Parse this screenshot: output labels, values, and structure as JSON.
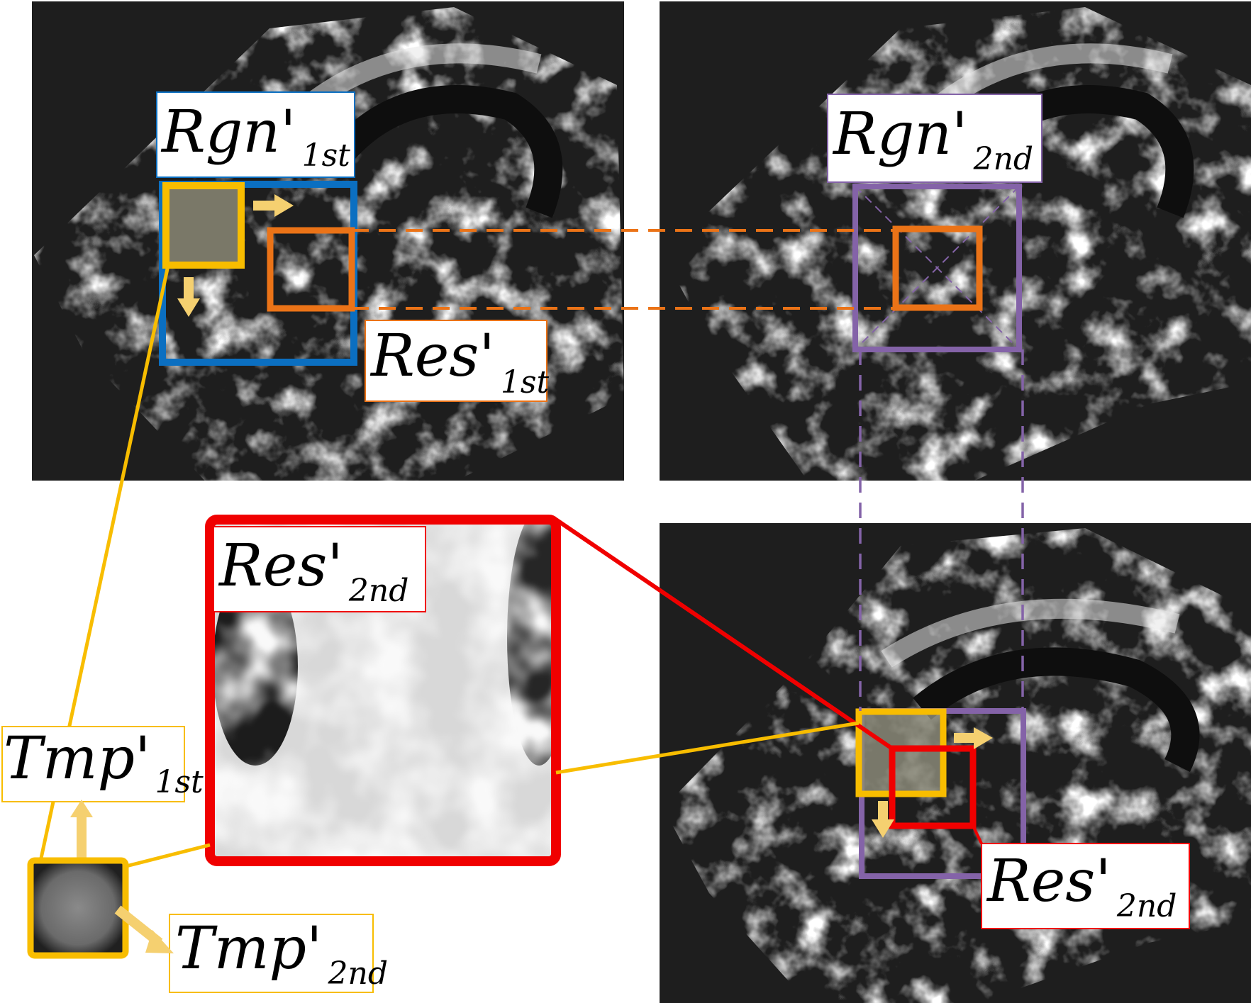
{
  "labels": {
    "rgn1": {
      "main": "Rgn'",
      "sub": "1st"
    },
    "res1": {
      "main": "Res'",
      "sub": "1st"
    },
    "rgn2": {
      "main": "Rgn'",
      "sub": "2nd"
    },
    "res2_zoom": {
      "main": "Res'",
      "sub": "2nd"
    },
    "res2": {
      "main": "Res'",
      "sub": "2nd"
    },
    "tmp1": {
      "main": "Tmp'",
      "sub": "1st"
    },
    "tmp2": {
      "main": "Tmp'",
      "sub": "2nd"
    }
  },
  "colors": {
    "template_yellow": "#f8bd00",
    "region1_blue": "#0b6fc1",
    "result1_orange": "#eb7317",
    "region2_purple": "#8463a8",
    "result2_red": "#f00000",
    "image_background": "#1e1e1e"
  }
}
